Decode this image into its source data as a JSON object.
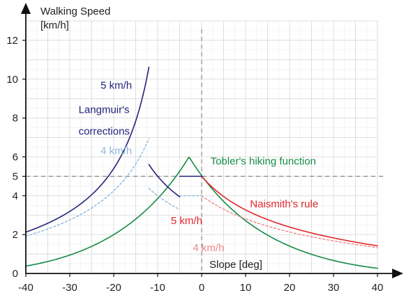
{
  "chart_data": {
    "type": "line",
    "title": "",
    "xlabel": "Slope [deg]",
    "ylabel_lines": [
      "Walking Speed",
      "[km/h]"
    ],
    "xlim": [
      -40,
      40
    ],
    "ylim": [
      0,
      13
    ],
    "x_ticks": [
      -40,
      -30,
      -20,
      -10,
      0,
      10,
      20,
      30,
      40
    ],
    "y_ticks": [
      2,
      4,
      5,
      6,
      8,
      10,
      12
    ],
    "y_origin_label": "0",
    "grid": true,
    "reference_lines": [
      {
        "axis": "x",
        "value": 0,
        "style": "dashed"
      },
      {
        "axis": "y",
        "value": 5,
        "style": "dashed"
      }
    ],
    "colors": {
      "tobler": "#138a45",
      "naismith": "#e0262a",
      "naismith_light": "#ee8888",
      "langmuir": "#23237a",
      "langmuir_light": "#8fb8dd",
      "axis": "#111111",
      "grid": "#dddddd",
      "refline": "#888888"
    },
    "series": [
      {
        "key": "tobler",
        "color": "tobler",
        "style": "solid",
        "kind": "tobler",
        "range": [
          -40,
          40
        ]
      },
      {
        "key": "naismith_5",
        "color": "naismith",
        "style": "solid",
        "kind": "naismith",
        "base": 5,
        "range": [
          0,
          40
        ]
      },
      {
        "key": "naismith_4",
        "color": "naismith_light",
        "style": "dotted",
        "kind": "naismith",
        "base": 4,
        "range": [
          0,
          40
        ]
      },
      {
        "key": "langmuir_5_left",
        "color": "langmuir",
        "style": "solid",
        "kind": "langmuir_steep",
        "base": 5,
        "range": [
          -40,
          -12
        ]
      },
      {
        "key": "langmuir_5_mid",
        "color": "langmuir",
        "style": "solid",
        "kind": "langmuir_mid",
        "base": 5,
        "range": [
          -12,
          -5
        ]
      },
      {
        "key": "langmuir_5_flat",
        "color": "langmuir",
        "style": "solid",
        "kind": "flat",
        "base": 5,
        "range": [
          -5,
          0
        ]
      },
      {
        "key": "langmuir_4_left",
        "color": "langmuir_light",
        "style": "dotted",
        "kind": "langmuir_steep",
        "base": 4,
        "range": [
          -40,
          -12
        ]
      },
      {
        "key": "langmuir_4_mid",
        "color": "langmuir_light",
        "style": "dotted",
        "kind": "langmuir_mid",
        "base": 4,
        "range": [
          -12,
          -5
        ]
      },
      {
        "key": "langmuir_4_flat",
        "color": "langmuir_light",
        "style": "dotted",
        "kind": "flat",
        "base": 4,
        "range": [
          -5,
          0
        ]
      }
    ],
    "annotations": [
      {
        "key": "tobler",
        "text": "Tobler's hiking function",
        "x": 2,
        "y": 5.6,
        "color": "tobler"
      },
      {
        "key": "naismith",
        "text": "Naismith's rule",
        "x": 11,
        "y": 3.4,
        "color": "naismith"
      },
      {
        "key": "naismith_5",
        "text": "5 km/h",
        "x": -7,
        "y": 2.55,
        "color": "naismith"
      },
      {
        "key": "naismith_4",
        "text": "4 km/h",
        "x": -2,
        "y": 1.15,
        "color": "naismith_light"
      },
      {
        "key": "langmuir_5",
        "text": "5 km/h",
        "x": -23,
        "y": 9.5,
        "color": "langmuir"
      },
      {
        "key": "langmuir_title_1",
        "text": "Langmuir's",
        "x": -28,
        "y": 8.25,
        "color": "langmuir"
      },
      {
        "key": "langmuir_title_2",
        "text": "corrections",
        "x": -28,
        "y": 7.15,
        "color": "langmuir"
      },
      {
        "key": "langmuir_4",
        "text": "4 km/h",
        "x": -23,
        "y": 6.15,
        "color": "langmuir_light"
      }
    ]
  }
}
